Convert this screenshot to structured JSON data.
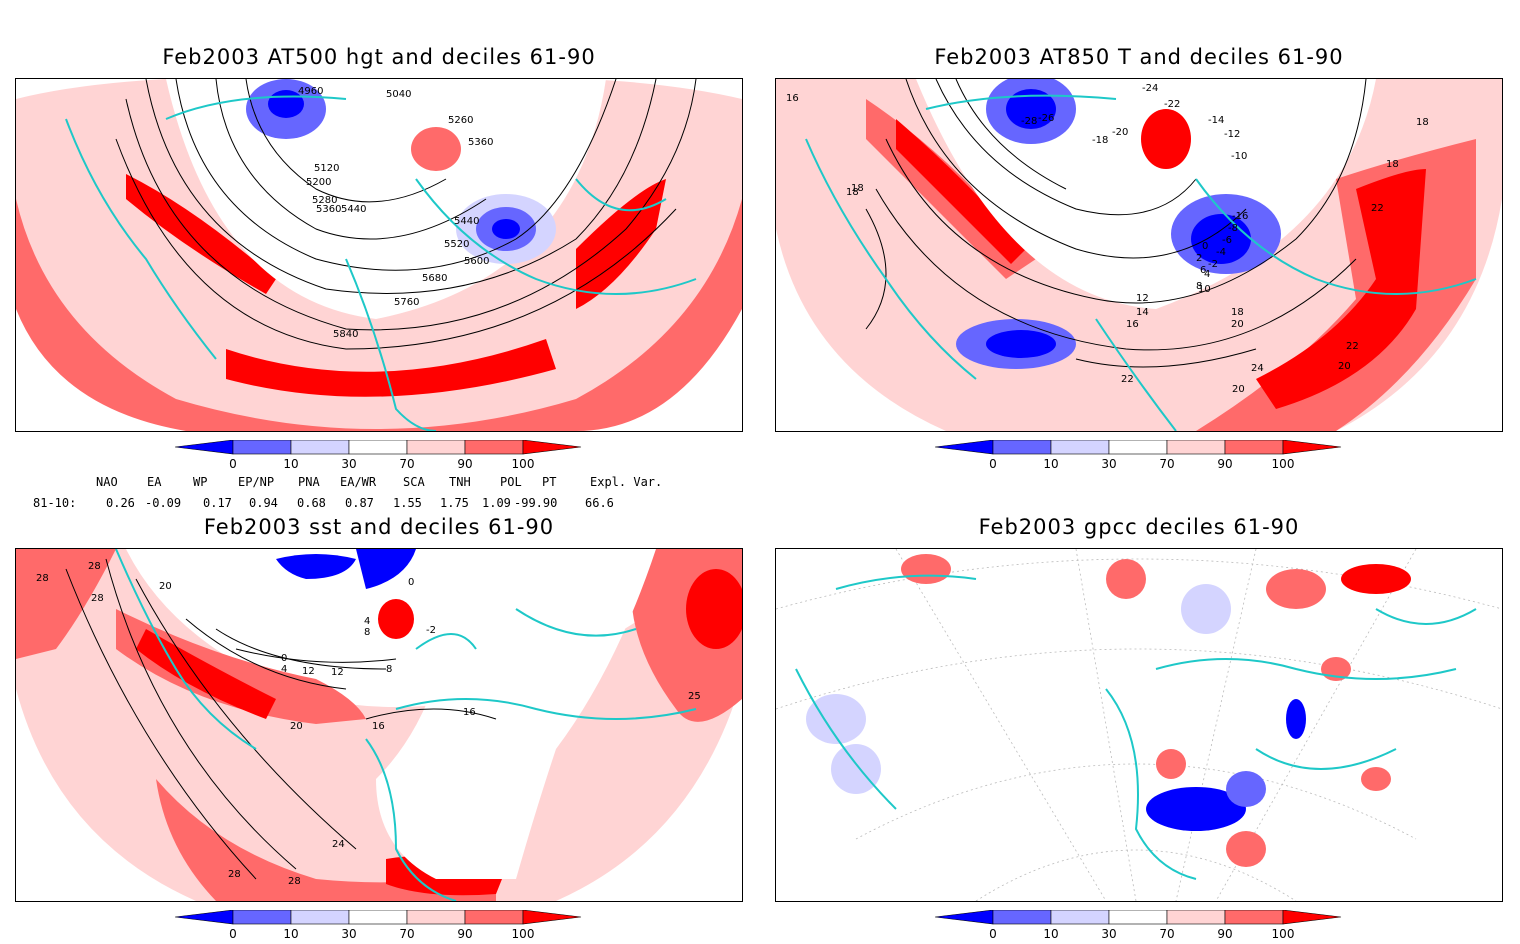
{
  "panels": [
    {
      "title": "Feb2003 AT500 hgt and deciles 61-90",
      "contour_labels": [
        "4960",
        "5040",
        "5260",
        "5360",
        "5120",
        "5200",
        "5280",
        "5360",
        "5440",
        "5440",
        "5520",
        "5600",
        "5680",
        "5760",
        "5840"
      ]
    },
    {
      "title": "Feb2003 AT850 T and deciles 61-90",
      "contour_labels": [
        "-26",
        "-24",
        "-22",
        "-28",
        "-20",
        "-18",
        "-14",
        "-12",
        "-10",
        "-16",
        "-8",
        "-6",
        "-4",
        "-2",
        "0",
        "2",
        "4",
        "6",
        "8",
        "10",
        "12",
        "14",
        "16",
        "18",
        "18",
        "18",
        "18",
        "16",
        "18",
        "20",
        "22",
        "22",
        "22",
        "24",
        "20",
        "20"
      ]
    },
    {
      "title": "Feb2003 sst and deciles 61-90",
      "contour_labels": [
        "28",
        "28",
        "28",
        "20",
        "0",
        "4",
        "4",
        "8",
        "12",
        "16",
        "16",
        "20",
        "24",
        "28",
        "28",
        "25",
        "0",
        "-2",
        "8",
        "12"
      ]
    },
    {
      "title": "Feb2003 gpcc deciles 61-90",
      "contour_labels": []
    }
  ],
  "colorbar": {
    "labels": [
      "0",
      "10",
      "30",
      "70",
      "90",
      "100"
    ],
    "colors": [
      "#0000ff",
      "#6666ff",
      "#d4d4ff",
      "#ffffff",
      "#ffd4d4",
      "#ff6a6a",
      "#ff0000"
    ]
  },
  "indices": {
    "headers": [
      "NAO",
      "EA",
      "WP",
      "EP/NP",
      "PNA",
      "EA/WR",
      "SCA",
      "TNH",
      "POL",
      "PT",
      "Expl. Var."
    ],
    "row_label": "81-10:",
    "values": [
      "0.26",
      "-0.09",
      "0.17",
      "0.94",
      "0.68",
      "0.87",
      "1.55",
      "1.75",
      "1.09",
      "-99.90",
      "66.6"
    ]
  },
  "colors": {
    "land_outline": "#1ec8c8",
    "contour": "#000000",
    "frame": "#000000"
  }
}
